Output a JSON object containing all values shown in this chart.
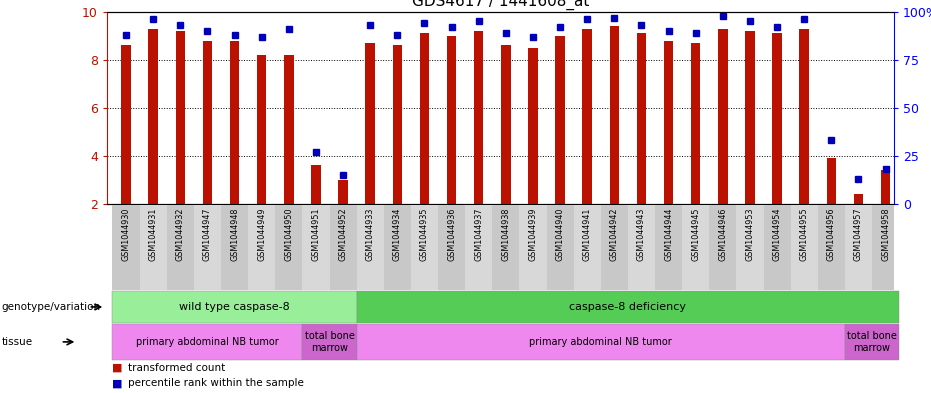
{
  "title": "GDS4617 / 1441608_at",
  "samples": [
    "GSM1044930",
    "GSM1044931",
    "GSM1044932",
    "GSM1044947",
    "GSM1044948",
    "GSM1044949",
    "GSM1044950",
    "GSM1044951",
    "GSM1044952",
    "GSM1044933",
    "GSM1044934",
    "GSM1044935",
    "GSM1044936",
    "GSM1044937",
    "GSM1044938",
    "GSM1044939",
    "GSM1044940",
    "GSM1044941",
    "GSM1044942",
    "GSM1044943",
    "GSM1044944",
    "GSM1044945",
    "GSM1044946",
    "GSM1044953",
    "GSM1044954",
    "GSM1044955",
    "GSM1044956",
    "GSM1044957",
    "GSM1044958"
  ],
  "red_values": [
    8.6,
    9.3,
    9.2,
    8.8,
    8.8,
    8.2,
    8.2,
    3.6,
    3.0,
    8.7,
    8.6,
    9.1,
    9.0,
    9.2,
    8.6,
    8.5,
    9.0,
    9.3,
    9.4,
    9.1,
    8.8,
    8.7,
    9.3,
    9.2,
    9.1,
    9.3,
    3.9,
    2.4,
    3.4
  ],
  "blue_pct": [
    88,
    96,
    93,
    90,
    88,
    87,
    91,
    27,
    15,
    93,
    88,
    94,
    92,
    95,
    89,
    87,
    92,
    96,
    97,
    93,
    90,
    89,
    98,
    95,
    92,
    96,
    33,
    13,
    18
  ],
  "ymin": 2,
  "ymax": 10,
  "bar_color": "#bb1100",
  "dot_color": "#0000bb",
  "grid_color": "black",
  "genotype_groups": [
    {
      "label": "wild type caspase-8",
      "start": 0,
      "end": 9,
      "color": "#99ee99"
    },
    {
      "label": "caspase-8 deficiency",
      "start": 9,
      "end": 29,
      "color": "#55cc55"
    }
  ],
  "tissue_groups": [
    {
      "label": "primary abdominal NB tumor",
      "start": 0,
      "end": 7,
      "color": "#ee88ee"
    },
    {
      "label": "total bone\nmarrow",
      "start": 7,
      "end": 9,
      "color": "#cc66cc"
    },
    {
      "label": "primary abdominal NB tumor",
      "start": 9,
      "end": 27,
      "color": "#ee88ee"
    },
    {
      "label": "total bone\nmarrow",
      "start": 27,
      "end": 29,
      "color": "#cc66cc"
    }
  ],
  "tick_colors": [
    "#c8c8c8",
    "#d8d8d8"
  ],
  "xlim_lo": -0.7,
  "xlim_hi": 28.3
}
